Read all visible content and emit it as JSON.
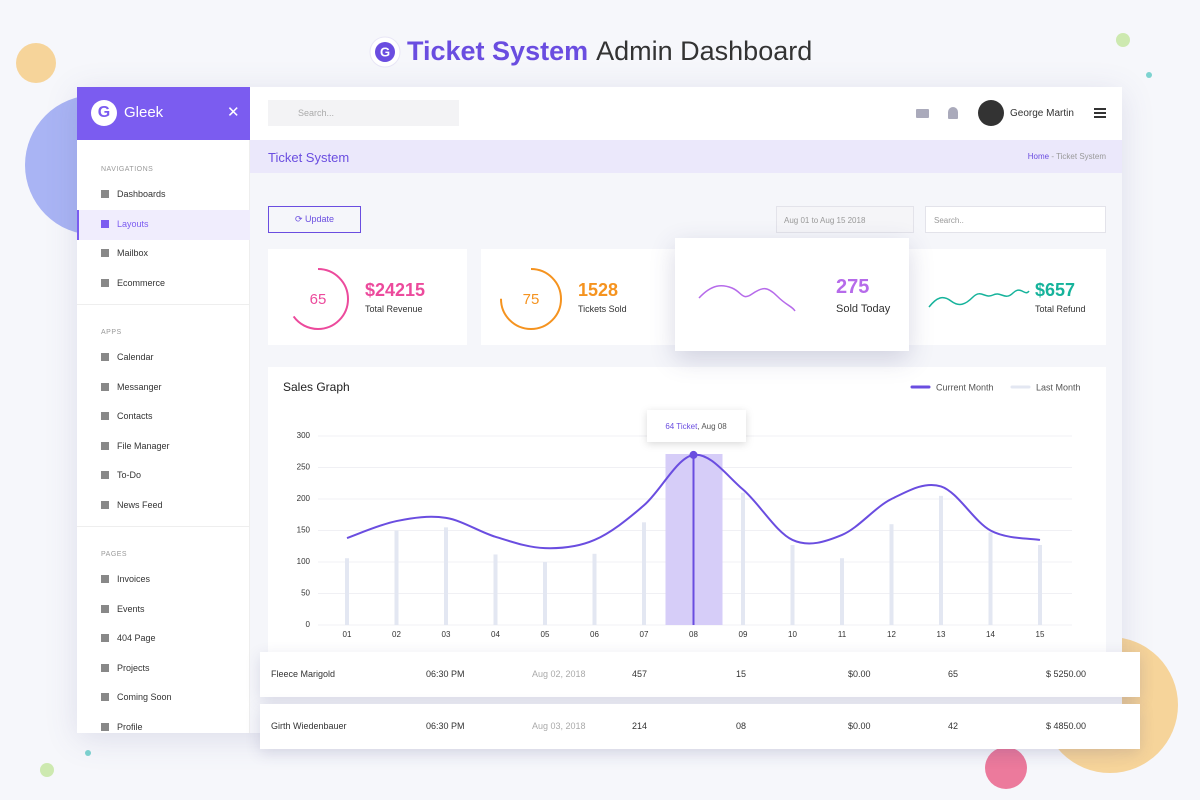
{
  "header": {
    "title_bold": "Ticket System",
    "title_rest": "Admin Dashboard"
  },
  "sidebar": {
    "brand": "Gleek",
    "sections": [
      {
        "title": "NAVIGATIONS",
        "items": [
          {
            "label": "Dashboards"
          },
          {
            "label": "Layouts",
            "active": true
          },
          {
            "label": "Mailbox"
          },
          {
            "label": "Ecommerce"
          }
        ]
      },
      {
        "title": "APPS",
        "items": [
          {
            "label": "Calendar"
          },
          {
            "label": "Messanger"
          },
          {
            "label": "Contacts"
          },
          {
            "label": "File Manager"
          },
          {
            "label": "To-Do"
          },
          {
            "label": "News Feed"
          }
        ]
      },
      {
        "title": "PAGES",
        "items": [
          {
            "label": "Invoices"
          },
          {
            "label": "Events"
          },
          {
            "label": "404 Page"
          },
          {
            "label": "Projects"
          },
          {
            "label": "Coming Soon"
          },
          {
            "label": "Profile"
          }
        ]
      }
    ]
  },
  "topbar": {
    "search_placeholder": "Search...",
    "user": "George Martin"
  },
  "breadcrumb": {
    "page": "Ticket System",
    "home": "Home",
    "separator": "-",
    "current": "Ticket System"
  },
  "toolbar": {
    "button": "Update",
    "date_range": "Aug 01 to Aug 15 2018",
    "search_placeholder": "Search.."
  },
  "stats": [
    {
      "ring": 65,
      "value": "$24215",
      "label": "Total Revenue",
      "color": "#ec4a9c"
    },
    {
      "ring": 75,
      "value": "1528",
      "label": "Tickets Sold",
      "color": "#f5931f"
    },
    {
      "value": "275",
      "label": "Sold Today",
      "color": "#b66bea"
    },
    {
      "value": "$657",
      "label": "Total Refund",
      "color": "#16b39b"
    }
  ],
  "chart_data": {
    "type": "line",
    "title": "Sales Graph",
    "categories": [
      "01",
      "02",
      "03",
      "04",
      "05",
      "06",
      "07",
      "08",
      "09",
      "10",
      "11",
      "12",
      "13",
      "14",
      "15"
    ],
    "series": [
      {
        "name": "Current Month",
        "type": "line",
        "color": "#6a4de0",
        "values": [
          138,
          165,
          170,
          140,
          122,
          135,
          190,
          270,
          215,
          135,
          143,
          200,
          220,
          150,
          135
        ]
      },
      {
        "name": "Last Month",
        "type": "bar",
        "color": "#e3e7f2",
        "values": [
          106,
          150,
          155,
          112,
          100,
          113,
          163,
          null,
          210,
          127,
          106,
          160,
          205,
          147,
          127
        ]
      }
    ],
    "ylim": [
      0,
      300
    ],
    "yticks": [
      0,
      50,
      100,
      150,
      200,
      250,
      300
    ],
    "grid": true,
    "highlight_index": 7,
    "tooltip_parts": [
      "64 Ticket",
      ", Aug 08"
    ]
  },
  "table": {
    "rows": [
      [
        "Fleece Marigold",
        "06:30 PM",
        "Aug 02, 2018",
        "457",
        "15",
        "$0.00",
        "65",
        "$ 5250.00"
      ],
      [
        "Girth Wiedenbauer",
        "06:30 PM",
        "Aug 03, 2018",
        "214",
        "08",
        "$0.00",
        "42",
        "$ 4850.00"
      ]
    ]
  }
}
